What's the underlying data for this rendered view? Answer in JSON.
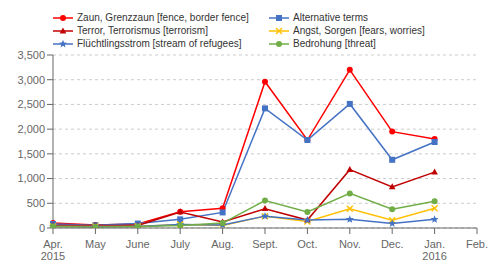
{
  "chart_data": {
    "type": "line",
    "categories": [
      "Apr.\n2015",
      "May",
      "June",
      "July",
      "Aug.",
      "Sept.",
      "Oct.",
      "Nov.",
      "Dec.",
      "Jan.\n2016",
      "Feb."
    ],
    "series": [
      {
        "name": "Zaun, Grenzzaun [fence, border fence]",
        "color": "#FF0000",
        "marker": "circle",
        "line_style": "solid",
        "values": [
          100,
          60,
          80,
          330,
          400,
          2960,
          1780,
          3200,
          1950,
          1800,
          null
        ]
      },
      {
        "name": "Alternative terms",
        "color": "#4472C4",
        "marker": "square",
        "line_style": "solid",
        "values": [
          80,
          55,
          90,
          175,
          315,
          2420,
          1780,
          2510,
          1380,
          1740,
          null
        ]
      },
      {
        "name": "Terror, Terrorismus [terrorism]",
        "color": "#C00000",
        "marker": "triangle",
        "line_style": "solid",
        "values": [
          50,
          50,
          50,
          325,
          120,
          390,
          160,
          1180,
          830,
          1130,
          null
        ]
      },
      {
        "name": "Angst, Sorgen [fears, worries]",
        "color": "#FFC000",
        "marker": "x",
        "line_style": "solid",
        "values": [
          30,
          30,
          30,
          70,
          50,
          240,
          130,
          390,
          155,
          400,
          null
        ]
      },
      {
        "name": "Flüchtlingsstrom [stream of refugees]",
        "color": "#4472C4",
        "marker": "star",
        "line_style": "solid",
        "values": [
          30,
          30,
          30,
          70,
          60,
          240,
          160,
          175,
          90,
          175,
          null
        ]
      },
      {
        "name": "Bedrohung [threat]",
        "color": "#70AD47",
        "marker": "circle",
        "line_style": "solid",
        "values": [
          30,
          20,
          30,
          50,
          100,
          555,
          325,
          700,
          380,
          540,
          null
        ]
      }
    ],
    "ylim": [
      0,
      3500
    ],
    "yticks": [
      0,
      500,
      {
        "value": 1000,
        "label": "1,000"
      },
      {
        "value": 1500,
        "label": "1,500"
      },
      {
        "value": 2000,
        "label": "2,000"
      },
      {
        "value": 2500,
        "label": "2,500"
      },
      {
        "value": 3000,
        "label": "3,000"
      },
      {
        "value": 3500,
        "label": "3,500"
      }
    ],
    "grid": true,
    "legend": "top"
  }
}
